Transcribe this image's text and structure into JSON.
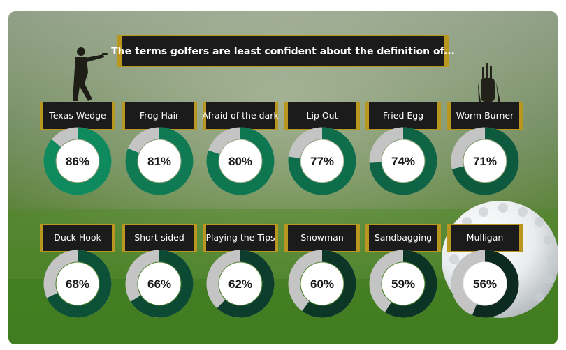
{
  "chart_data": {
    "type": "donut",
    "title": "The terms golfers are least confident about the definition of...",
    "categories": [
      "Texas Wedge",
      "Frog Hair",
      "Afraid of the dark",
      "Lip Out",
      "Fried Egg",
      "Worm Burner",
      "Duck Hook",
      "Short-sided",
      "Playing the Tips",
      "Snowman",
      "Sandbagging",
      "Mulligan"
    ],
    "values": [
      86,
      81,
      80,
      77,
      74,
      71,
      68,
      66,
      62,
      60,
      59,
      56
    ],
    "value_labels": [
      "86%",
      "81%",
      "80%",
      "77%",
      "74%",
      "71%",
      "68%",
      "66%",
      "62%",
      "60%",
      "59%",
      "56%"
    ],
    "colors": {
      "fill_light": "#0f8a5e",
      "fill_dark": "#0c2a1f",
      "remainder": "#c4c4c4",
      "label_box": "#1b1b1b",
      "label_border": "#b8961f"
    }
  }
}
